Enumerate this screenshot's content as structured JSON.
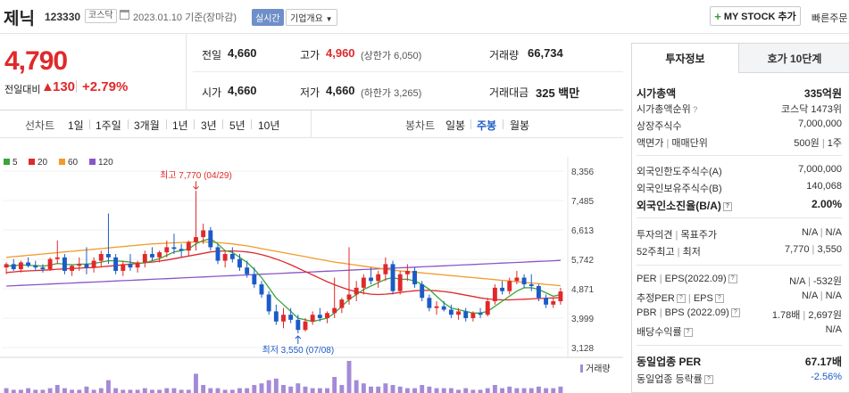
{
  "header": {
    "name": "제닉",
    "code": "123330",
    "market_badge": "코스닥",
    "date": "2023.01.10 기준(장마감)",
    "realtime": "실시간",
    "corp_info": "기업개요",
    "mystock": "MY STOCK 추가",
    "quick_order": "빠른주문"
  },
  "price": {
    "current": "4,790",
    "diff_label": "전일대비",
    "diff_arrow": "▲",
    "diff": "130",
    "rate": "+2.79%",
    "prev_label": "전일",
    "prev": "4,660",
    "high_label": "고가",
    "high": "4,960",
    "upper_limit": "(상한가 6,050)",
    "volume_label": "거래량",
    "volume": "66,734",
    "open_label": "시가",
    "open": "4,660",
    "low_label": "저가",
    "low": "4,660",
    "lower_limit": "(하한가 3,265)",
    "amount_label": "거래대금",
    "amount": "325 백만"
  },
  "periods": {
    "line_label": "선차트",
    "line_items": [
      "1일",
      "1주일",
      "3개월",
      "1년",
      "3년",
      "5년",
      "10년"
    ],
    "candle_label": "봉차트",
    "candle_items": [
      "일봉",
      "주봉",
      "월봉"
    ],
    "active_candle": "주봉"
  },
  "chart_data": {
    "type": "candlestick",
    "legend": [
      "5",
      "20",
      "60",
      "120"
    ],
    "legend_colors": [
      "#3aa53a",
      "#e0292a",
      "#f29b2d",
      "#8a55c8"
    ],
    "y_ticks": [
      "8,356",
      "7,485",
      "6,613",
      "5,742",
      "4,871",
      "3,999",
      "3,128"
    ],
    "ylim": [
      3128,
      8356
    ],
    "annotation_high": "최고 7,770 (04/29)",
    "annotation_low": "최저 3,550 (07/08)",
    "volume_label": "거래량",
    "up_color": "#e0292a",
    "down_color": "#1b5bc7",
    "candles": [
      [
        5500,
        5650,
        5300,
        5600
      ],
      [
        5600,
        5750,
        5400,
        5450
      ],
      [
        5450,
        5700,
        5350,
        5650
      ],
      [
        5650,
        5800,
        5500,
        5550
      ],
      [
        5550,
        5700,
        5400,
        5500
      ],
      [
        5500,
        5600,
        5350,
        5450
      ],
      [
        5450,
        5800,
        5400,
        5750
      ],
      [
        5750,
        6300,
        5600,
        5800
      ],
      [
        5800,
        5900,
        5300,
        5400
      ],
      [
        5400,
        5600,
        5250,
        5550
      ],
      [
        5550,
        5800,
        5400,
        5600
      ],
      [
        5600,
        6100,
        5300,
        5500
      ],
      [
        5500,
        5800,
        5350,
        5700
      ],
      [
        5700,
        6000,
        5500,
        5900
      ],
      [
        5900,
        7100,
        5600,
        5800
      ],
      [
        5800,
        5900,
        5300,
        5400
      ],
      [
        5400,
        5700,
        5250,
        5600
      ],
      [
        5600,
        5900,
        5400,
        5500
      ],
      [
        5500,
        5700,
        5350,
        5650
      ],
      [
        5650,
        6000,
        5500,
        5900
      ],
      [
        5900,
        6100,
        5700,
        5800
      ],
      [
        5800,
        6000,
        5650,
        5950
      ],
      [
        5950,
        6300,
        5800,
        6100
      ],
      [
        6100,
        6500,
        5900,
        6050
      ],
      [
        6050,
        6200,
        5800,
        6000
      ],
      [
        6000,
        6300,
        5850,
        6250
      ],
      [
        6250,
        7770,
        6000,
        6400
      ],
      [
        6400,
        6800,
        6200,
        6600
      ],
      [
        6600,
        6700,
        6000,
        6100
      ],
      [
        6100,
        6200,
        5600,
        5700
      ],
      [
        5700,
        6000,
        5500,
        5900
      ],
      [
        5900,
        6100,
        5650,
        5750
      ],
      [
        5750,
        5900,
        5400,
        5500
      ],
      [
        5500,
        5700,
        5200,
        5300
      ],
      [
        5300,
        5500,
        4900,
        5000
      ],
      [
        5000,
        5100,
        4600,
        4700
      ],
      [
        4700,
        4800,
        4100,
        4200
      ],
      [
        4200,
        4400,
        3800,
        3900
      ],
      [
        3900,
        4300,
        3700,
        4100
      ],
      [
        4100,
        4300,
        3850,
        3950
      ],
      [
        3950,
        4100,
        3550,
        3650
      ],
      [
        3650,
        4000,
        3600,
        3900
      ],
      [
        3900,
        4200,
        3800,
        4100
      ],
      [
        4100,
        4300,
        3900,
        4000
      ],
      [
        4000,
        4200,
        3850,
        4150
      ],
      [
        4150,
        5200,
        4000,
        4300
      ],
      [
        4300,
        4600,
        4150,
        4550
      ],
      [
        4550,
        6100,
        4400,
        4700
      ],
      [
        4700,
        5100,
        4500,
        4900
      ],
      [
        4900,
        5300,
        4700,
        5200
      ],
      [
        5200,
        5500,
        5000,
        5100
      ],
      [
        5100,
        5400,
        4900,
        5300
      ],
      [
        5300,
        5800,
        5100,
        5600
      ],
      [
        5600,
        5700,
        4700,
        4800
      ],
      [
        4800,
        5400,
        4700,
        5300
      ],
      [
        5300,
        5600,
        5100,
        5400
      ],
      [
        5400,
        5500,
        4900,
        5000
      ],
      [
        5000,
        5100,
        4500,
        4600
      ],
      [
        4600,
        4700,
        4200,
        4300
      ],
      [
        4300,
        4500,
        4100,
        4350
      ],
      [
        4350,
        4500,
        4200,
        4250
      ],
      [
        4250,
        4400,
        4000,
        4100
      ],
      [
        4100,
        4300,
        3950,
        4200
      ],
      [
        4200,
        4300,
        3900,
        4000
      ],
      [
        4000,
        4200,
        3900,
        4150
      ],
      [
        4150,
        4300,
        4000,
        4100
      ],
      [
        4100,
        4600,
        4050,
        4500
      ],
      [
        4500,
        5000,
        4400,
        4900
      ],
      [
        4900,
        5100,
        4700,
        4800
      ],
      [
        4800,
        5200,
        4700,
        5100
      ],
      [
        5100,
        5400,
        5000,
        5200
      ],
      [
        5200,
        5300,
        4900,
        5000
      ],
      [
        5000,
        5300,
        4800,
        4950
      ],
      [
        4950,
        5000,
        4500,
        4600
      ],
      [
        4600,
        4700,
        4300,
        4400
      ],
      [
        4400,
        4600,
        4300,
        4500
      ],
      [
        4500,
        4900,
        4400,
        4790
      ]
    ],
    "ma5": [
      5550,
      5550,
      5580,
      5560,
      5560,
      5540,
      5570,
      5620,
      5600,
      5580,
      5600,
      5600,
      5620,
      5660,
      5700,
      5700,
      5680,
      5660,
      5620,
      5640,
      5700,
      5760,
      5860,
      5960,
      6000,
      6050,
      6200,
      6300,
      6350,
      6200,
      6000,
      5950,
      5800,
      5650,
      5450,
      5200,
      4900,
      4600,
      4400,
      4200,
      4000,
      3950,
      3900,
      3950,
      4000,
      4150,
      4350,
      4550,
      4700,
      4850,
      4950,
      5050,
      5150,
      5200,
      5150,
      5150,
      5100,
      5000,
      4850,
      4650,
      4450,
      4300,
      4250,
      4200,
      4150,
      4150,
      4200,
      4350,
      4500,
      4650,
      4800,
      4900,
      4900,
      4850,
      4750,
      4650,
      4700
    ],
    "ma20": [
      5350,
      5370,
      5390,
      5400,
      5410,
      5420,
      5430,
      5450,
      5460,
      5470,
      5480,
      5490,
      5500,
      5520,
      5540,
      5560,
      5580,
      5600,
      5620,
      5640,
      5660,
      5690,
      5720,
      5760,
      5800,
      5840,
      5880,
      5920,
      5960,
      5980,
      5990,
      5990,
      5980,
      5960,
      5930,
      5880,
      5820,
      5750,
      5670,
      5580,
      5480,
      5380,
      5280,
      5180,
      5080,
      4990,
      4910,
      4840,
      4780,
      4740,
      4710,
      4700,
      4710,
      4730,
      4760,
      4790,
      4810,
      4820,
      4820,
      4810,
      4790,
      4760,
      4720,
      4680,
      4640,
      4600,
      4570,
      4550,
      4540,
      4540,
      4550,
      4560,
      4570,
      4580,
      4590,
      4600,
      4610
    ],
    "ma60": [
      5800,
      5820,
      5840,
      5860,
      5880,
      5900,
      5920,
      5940,
      5960,
      5980,
      6000,
      6020,
      6040,
      6060,
      6080,
      6100,
      6120,
      6140,
      6160,
      6180,
      6200,
      6210,
      6220,
      6230,
      6240,
      6250,
      6260,
      6260,
      6250,
      6240,
      6220,
      6200,
      6170,
      6140,
      6100,
      6060,
      6020,
      5980,
      5940,
      5900,
      5860,
      5820,
      5780,
      5740,
      5700,
      5660,
      5630,
      5600,
      5570,
      5540,
      5510,
      5480,
      5450,
      5420,
      5400,
      5380,
      5360,
      5340,
      5320,
      5300,
      5280,
      5260,
      5240,
      5220,
      5200,
      5180,
      5160,
      5140,
      5120,
      5100,
      5080,
      5060,
      5040,
      5020,
      5000,
      4980,
      4960
    ],
    "ma120": [
      4950,
      4960,
      4970,
      4980,
      4990,
      5000,
      5010,
      5020,
      5030,
      5040,
      5050,
      5060,
      5070,
      5080,
      5090,
      5100,
      5110,
      5120,
      5130,
      5140,
      5150,
      5160,
      5170,
      5180,
      5190,
      5200,
      5210,
      5220,
      5230,
      5240,
      5250,
      5260,
      5270,
      5280,
      5290,
      5300,
      5310,
      5320,
      5330,
      5340,
      5350,
      5360,
      5370,
      5380,
      5390,
      5400,
      5410,
      5420,
      5430,
      5440,
      5450,
      5460,
      5470,
      5480,
      5490,
      5500,
      5510,
      5520,
      5530,
      5540,
      5550,
      5560,
      5570,
      5580,
      5590,
      5600,
      5610,
      5620,
      5630,
      5640,
      5650,
      5660,
      5670,
      5680,
      5690,
      5700,
      5710
    ],
    "volumes": [
      3,
      2,
      2,
      3,
      2,
      2,
      3,
      5,
      3,
      2,
      2,
      4,
      2,
      3,
      8,
      3,
      2,
      2,
      2,
      3,
      2,
      2,
      3,
      3,
      2,
      2,
      12,
      5,
      3,
      3,
      2,
      2,
      3,
      3,
      5,
      6,
      8,
      9,
      5,
      4,
      6,
      4,
      3,
      3,
      3,
      10,
      5,
      20,
      8,
      6,
      4,
      4,
      6,
      5,
      4,
      3,
      3,
      5,
      4,
      3,
      3,
      3,
      2,
      3,
      2,
      2,
      3,
      5,
      3,
      4,
      3,
      3,
      3,
      4,
      3,
      3,
      4
    ]
  },
  "info_tabs": [
    "투자정보",
    "호가 10단계"
  ],
  "info": {
    "market_cap_label": "시가총액",
    "market_cap": "335억원",
    "cap_rank_label": "시가총액순위",
    "cap_rank": "코스닥 1473위",
    "shares_label": "상장주식수",
    "shares": "7,000,000",
    "par_label": "액면가",
    "par_sep": "|",
    "unit_label": "매매단위",
    "par": "500원",
    "unit": "1주",
    "foreign_limit_label": "외국인한도주식수(A)",
    "foreign_limit": "7,000,000",
    "foreign_hold_label": "외국인보유주식수(B)",
    "foreign_hold": "140,068",
    "foreign_rate_label": "외국인소진율(B/A)",
    "foreign_rate": "2.00%",
    "opinion_label": "투자의견",
    "target_label": "목표주가",
    "opinion": "N/A",
    "target": "N/A",
    "w52_label": "52주최고",
    "w52_low_label": "최저",
    "w52_high": "7,770",
    "w52_low": "3,550",
    "per_label": "PER",
    "eps_label": "EPS(2022.09)",
    "per": "N/A",
    "eps": "-532원",
    "est_per_label": "추정PER",
    "est_eps_label": "EPS",
    "est_per": "N/A",
    "est_eps": "N/A",
    "pbr_label": "PBR",
    "bps_label": "BPS (2022.09)",
    "pbr": "1.78배",
    "bps": "2,697원",
    "div_label": "배당수익률",
    "div": "N/A",
    "ind_per_label": "동일업종 PER",
    "ind_per": "67.17배",
    "ind_rate_label": "동일업종 등락률",
    "ind_rate": "-2.56%"
  }
}
